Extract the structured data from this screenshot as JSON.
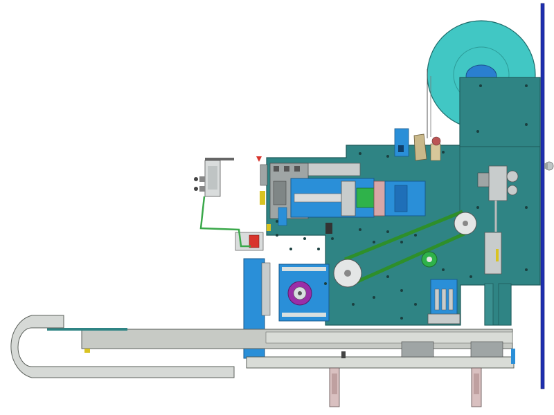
{
  "drawing": {
    "colors": {
      "background": "#ffffff",
      "frame_plate": "#2f8484",
      "frame_plate_edge": "#1d5a5a",
      "reel": "#41c7c4",
      "reel_hub": "#2a7fd0",
      "upright_bar": "#1f2fb0",
      "blue_bracket": "#2a8fd8",
      "gray_part": "#c8cccc",
      "gray_dark": "#8a9090",
      "belt": "#2e8f2a",
      "green_roller": "#2fb24a",
      "magenta_cam": "#9a2ea8",
      "red_tip": "#d8342c",
      "yellow_part": "#d9c322",
      "hose": "#3aa84a",
      "cable_chain": "#d6d9d6"
    }
  }
}
